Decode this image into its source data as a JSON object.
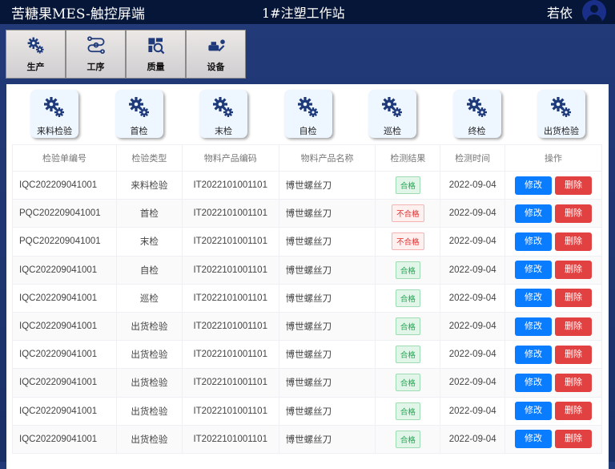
{
  "header": {
    "title": "苦糖果MES-触控屏端",
    "station": "1#注塑工作站",
    "user": "若依"
  },
  "nav": [
    {
      "label": "生产",
      "icon": "gears-icon"
    },
    {
      "label": "工序",
      "icon": "process-icon"
    },
    {
      "label": "质量",
      "icon": "quality-icon"
    },
    {
      "label": "设备",
      "icon": "equipment-icon"
    }
  ],
  "categories": [
    "来料检验",
    "首检",
    "末检",
    "自检",
    "巡检",
    "终检",
    "出货检验"
  ],
  "table": {
    "columns": [
      "检验单编号",
      "检验类型",
      "物料产品编码",
      "物料产品名称",
      "检测结果",
      "检测时间",
      "操作"
    ],
    "edit_label": "修改",
    "delete_label": "删除",
    "rows": [
      {
        "no": "IQC202209041001",
        "type": "来料检验",
        "code": "IT2022101001101",
        "name": "博世螺丝刀",
        "result": "合格",
        "pass": true,
        "date": "2022-09-04"
      },
      {
        "no": "PQC202209041001",
        "type": "首检",
        "code": "IT2022101001101",
        "name": "博世螺丝刀",
        "result": "不合格",
        "pass": false,
        "date": "2022-09-04"
      },
      {
        "no": "PQC202209041001",
        "type": "末检",
        "code": "IT2022101001101",
        "name": "博世螺丝刀",
        "result": "不合格",
        "pass": false,
        "date": "2022-09-04"
      },
      {
        "no": "IQC202209041001",
        "type": "自检",
        "code": "IT2022101001101",
        "name": "博世螺丝刀",
        "result": "合格",
        "pass": true,
        "date": "2022-09-04"
      },
      {
        "no": "IQC202209041001",
        "type": "巡检",
        "code": "IT2022101001101",
        "name": "博世螺丝刀",
        "result": "合格",
        "pass": true,
        "date": "2022-09-04"
      },
      {
        "no": "IQC202209041001",
        "type": "出货检验",
        "code": "IT2022101001101",
        "name": "博世螺丝刀",
        "result": "合格",
        "pass": true,
        "date": "2022-09-04"
      },
      {
        "no": "IQC202209041001",
        "type": "出货检验",
        "code": "IT2022101001101",
        "name": "博世螺丝刀",
        "result": "合格",
        "pass": true,
        "date": "2022-09-04"
      },
      {
        "no": "IQC202209041001",
        "type": "出货检验",
        "code": "IT2022101001101",
        "name": "博世螺丝刀",
        "result": "合格",
        "pass": true,
        "date": "2022-09-04"
      },
      {
        "no": "IQC202209041001",
        "type": "出货检验",
        "code": "IT2022101001101",
        "name": "博世螺丝刀",
        "result": "合格",
        "pass": true,
        "date": "2022-09-04"
      },
      {
        "no": "IQC202209041001",
        "type": "出货检验",
        "code": "IT2022101001101",
        "name": "博世螺丝刀",
        "result": "合格",
        "pass": true,
        "date": "2022-09-04"
      }
    ]
  }
}
